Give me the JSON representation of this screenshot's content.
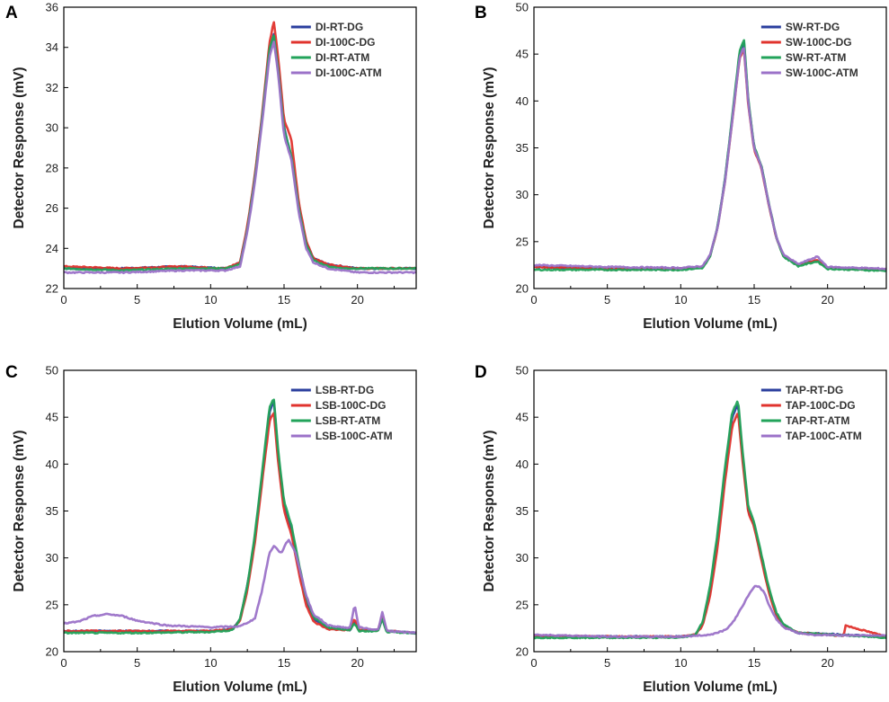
{
  "colors": {
    "RT_DG": "#2b3f9e",
    "100C_DG": "#e0332d",
    "RT_ATM": "#22a35a",
    "100C_ATM": "#9b72c8"
  },
  "chart_data": [
    {
      "panel": "A",
      "type": "line",
      "xlabel": "Elution Volume (mL)",
      "ylabel": "Detector Response (mV)",
      "xlim": [
        0,
        24
      ],
      "ylim": [
        22,
        36
      ],
      "xticks": [
        0,
        5,
        10,
        15,
        20
      ],
      "yticks": [
        22,
        24,
        26,
        28,
        30,
        32,
        34,
        36
      ],
      "legend_position": "top-right",
      "series": [
        {
          "name": "DI-RT-DG",
          "color_key": "RT_DG",
          "x": [
            0,
            4,
            8,
            11,
            12,
            12.5,
            13,
            13.5,
            14,
            14.3,
            14.6,
            15,
            15.5,
            16,
            16.5,
            17,
            18,
            19,
            20,
            24
          ],
          "y": [
            23.0,
            23.0,
            23.1,
            23.0,
            23.3,
            25.0,
            27.5,
            30.5,
            33.8,
            34.7,
            33.0,
            30.0,
            28.5,
            26.0,
            24.3,
            23.5,
            23.2,
            23.1,
            23.0,
            23.0
          ]
        },
        {
          "name": "DI-100C-DG",
          "color_key": "100C_DG",
          "x": [
            0,
            4,
            8,
            11,
            12,
            12.5,
            13,
            13.5,
            14,
            14.3,
            14.6,
            15,
            15.5,
            16,
            16.5,
            17,
            18,
            19,
            20,
            24
          ],
          "y": [
            23.1,
            23.0,
            23.1,
            23.0,
            23.3,
            25.1,
            27.6,
            30.6,
            34.2,
            35.3,
            33.5,
            30.4,
            29.4,
            26.3,
            24.4,
            23.5,
            23.2,
            23.1,
            23.0,
            23.0
          ]
        },
        {
          "name": "DI-RT-ATM",
          "color_key": "RT_ATM",
          "x": [
            0,
            4,
            8,
            11,
            12,
            12.5,
            13,
            13.5,
            14,
            14.3,
            14.6,
            15,
            15.5,
            16,
            16.5,
            17,
            18,
            19,
            20,
            24
          ],
          "y": [
            23.0,
            22.9,
            23.0,
            23.0,
            23.2,
            24.9,
            27.4,
            30.4,
            33.9,
            34.6,
            32.9,
            29.9,
            28.6,
            26.0,
            24.2,
            23.4,
            23.1,
            23.0,
            23.0,
            23.0
          ]
        },
        {
          "name": "DI-100C-ATM",
          "color_key": "100C_ATM",
          "x": [
            0,
            4,
            8,
            11,
            12,
            12.5,
            13,
            13.5,
            14,
            14.3,
            14.6,
            15,
            15.5,
            16,
            16.5,
            17,
            18,
            19,
            20,
            24
          ],
          "y": [
            22.8,
            22.8,
            22.9,
            22.9,
            23.1,
            24.8,
            27.2,
            30.2,
            33.5,
            34.3,
            32.7,
            29.6,
            28.4,
            25.8,
            24.0,
            23.3,
            23.0,
            22.9,
            22.8,
            22.8
          ]
        }
      ]
    },
    {
      "panel": "B",
      "type": "line",
      "xlabel": "Elution Volume (mL)",
      "ylabel": "Detector Response (mV)",
      "xlim": [
        0,
        24
      ],
      "ylim": [
        20,
        50
      ],
      "xticks": [
        0,
        5,
        10,
        15,
        20
      ],
      "yticks": [
        20,
        25,
        30,
        35,
        40,
        45,
        50
      ],
      "legend_position": "top-right",
      "series": [
        {
          "name": "SW-RT-DG",
          "color_key": "RT_DG",
          "x": [
            0,
            5,
            10,
            11.5,
            12,
            12.5,
            13,
            13.5,
            14,
            14.3,
            14.6,
            15,
            15.5,
            16,
            16.5,
            17,
            18,
            19.3,
            20,
            24
          ],
          "y": [
            22.3,
            22.1,
            22.1,
            22.3,
            23.5,
            26.5,
            31.5,
            38.0,
            45.0,
            46.3,
            40.0,
            35.0,
            33.0,
            29.0,
            25.5,
            23.5,
            22.5,
            23.0,
            22.2,
            22.0
          ]
        },
        {
          "name": "SW-100C-DG",
          "color_key": "100C_DG",
          "x": [
            0,
            5,
            10,
            11.5,
            12,
            12.5,
            13,
            13.5,
            14,
            14.3,
            14.6,
            15,
            15.5,
            16,
            16.5,
            17,
            18,
            19.3,
            20,
            24
          ],
          "y": [
            22.3,
            22.1,
            22.1,
            22.3,
            23.5,
            26.4,
            31.3,
            37.7,
            44.5,
            45.6,
            39.6,
            34.8,
            32.8,
            28.9,
            25.4,
            23.5,
            22.5,
            23.0,
            22.2,
            22.0
          ]
        },
        {
          "name": "SW-RT-ATM",
          "color_key": "RT_ATM",
          "x": [
            0,
            5,
            10,
            11.5,
            12,
            12.5,
            13,
            13.5,
            14,
            14.3,
            14.6,
            15,
            15.5,
            16,
            16.5,
            17,
            18,
            19.3,
            20,
            24
          ],
          "y": [
            22.0,
            22.0,
            22.0,
            22.2,
            23.4,
            26.5,
            31.5,
            38.2,
            45.3,
            46.6,
            40.2,
            35.1,
            33.1,
            29.1,
            25.5,
            23.4,
            22.4,
            22.9,
            22.1,
            21.9
          ]
        },
        {
          "name": "SW-100C-ATM",
          "color_key": "100C_ATM",
          "x": [
            0,
            5,
            10,
            11.5,
            12,
            12.5,
            13,
            13.5,
            14,
            14.3,
            14.6,
            15,
            15.5,
            16,
            16.5,
            17,
            18,
            19.3,
            20,
            24
          ],
          "y": [
            22.5,
            22.3,
            22.2,
            22.4,
            23.6,
            26.4,
            31.3,
            37.8,
            44.6,
            45.8,
            39.8,
            34.9,
            32.9,
            29.0,
            25.5,
            23.6,
            22.6,
            23.4,
            22.3,
            22.1
          ]
        }
      ]
    },
    {
      "panel": "C",
      "type": "line",
      "xlabel": "Elution Volume (mL)",
      "ylabel": "Detector Response (mV)",
      "xlim": [
        0,
        24
      ],
      "ylim": [
        20,
        50
      ],
      "xticks": [
        0,
        5,
        10,
        15,
        20
      ],
      "yticks": [
        20,
        25,
        30,
        35,
        40,
        45,
        50
      ],
      "legend_position": "top-right",
      "series": [
        {
          "name": "LSB-RT-DG",
          "color_key": "RT_DG",
          "x": [
            0,
            5,
            10,
            11.5,
            12,
            12.5,
            13,
            13.5,
            14,
            14.3,
            14.6,
            15,
            15.5,
            16,
            16.5,
            17,
            18,
            19.5,
            19.8,
            20.1,
            21.4,
            21.7,
            22,
            24
          ],
          "y": [
            22.2,
            22.2,
            22.2,
            22.4,
            23.5,
            27.0,
            32.0,
            38.5,
            45.5,
            46.8,
            41.0,
            35.5,
            33.0,
            29.0,
            25.5,
            23.5,
            22.5,
            22.3,
            23.2,
            22.3,
            22.3,
            23.5,
            22.2,
            22.0
          ]
        },
        {
          "name": "LSB-100C-DG",
          "color_key": "100C_DG",
          "x": [
            0,
            5,
            10,
            11.5,
            12,
            12.5,
            13,
            13.5,
            14,
            14.3,
            14.6,
            15,
            15.5,
            16,
            16.5,
            17,
            18,
            19.5,
            19.8,
            20.1,
            21.4,
            21.7,
            22,
            24
          ],
          "y": [
            22.2,
            22.2,
            22.2,
            22.4,
            23.3,
            26.5,
            31.5,
            38.0,
            44.5,
            45.6,
            40.2,
            35.0,
            32.5,
            28.5,
            25.0,
            23.2,
            22.4,
            22.3,
            23.5,
            22.3,
            22.3,
            23.8,
            22.2,
            22.0
          ]
        },
        {
          "name": "LSB-RT-ATM",
          "color_key": "RT_ATM",
          "x": [
            0,
            5,
            10,
            11.5,
            12,
            12.5,
            13,
            13.5,
            14,
            14.3,
            14.6,
            15,
            15.5,
            16,
            16.5,
            17,
            18,
            19.5,
            19.8,
            20.1,
            21.4,
            21.7,
            22,
            24
          ],
          "y": [
            22.0,
            22.0,
            22.1,
            22.3,
            23.5,
            27.0,
            32.3,
            39.0,
            46.0,
            47.0,
            41.5,
            36.0,
            33.5,
            29.5,
            25.8,
            23.7,
            22.6,
            22.3,
            23.0,
            22.2,
            22.2,
            23.5,
            22.1,
            22.0
          ]
        },
        {
          "name": "LSB-100C-ATM",
          "color_key": "100C_ATM",
          "x": [
            0,
            1,
            2,
            3,
            4,
            5,
            7,
            10,
            12,
            13,
            13.5,
            14,
            14.3,
            14.8,
            15.3,
            15.8,
            16.5,
            17,
            18,
            19.5,
            19.8,
            20.1,
            21.4,
            21.7,
            22,
            24
          ],
          "y": [
            23.0,
            23.2,
            23.8,
            24.0,
            23.8,
            23.3,
            22.8,
            22.6,
            22.7,
            23.5,
            26.5,
            30.5,
            31.3,
            30.5,
            32.0,
            30.5,
            26.0,
            24.0,
            22.8,
            22.5,
            25.0,
            22.6,
            22.3,
            24.2,
            22.2,
            22.0
          ]
        }
      ]
    },
    {
      "panel": "D",
      "type": "line",
      "xlabel": "Elution Volume (mL)",
      "ylabel": "Detector Response (mV)",
      "xlim": [
        0,
        24
      ],
      "ylim": [
        20,
        50
      ],
      "xticks": [
        0,
        5,
        10,
        15,
        20
      ],
      "yticks": [
        20,
        25,
        30,
        35,
        40,
        45,
        50
      ],
      "legend_position": "top-right",
      "series": [
        {
          "name": "TAP-RT-DG",
          "color_key": "RT_DG",
          "x": [
            0,
            5,
            10,
            11,
            11.5,
            12,
            12.5,
            13,
            13.5,
            13.9,
            14.2,
            14.6,
            15,
            15.5,
            16,
            16.5,
            17,
            18,
            24
          ],
          "y": [
            21.7,
            21.6,
            21.6,
            21.8,
            23.0,
            26.5,
            32.0,
            39.0,
            45.0,
            46.5,
            41.0,
            35.0,
            33.5,
            30.0,
            26.5,
            24.0,
            22.8,
            22.0,
            21.6
          ]
        },
        {
          "name": "TAP-100C-DG",
          "color_key": "100C_DG",
          "x": [
            0,
            5,
            10,
            11,
            11.5,
            12,
            12.5,
            13,
            13.5,
            13.9,
            14.2,
            14.6,
            15,
            15.5,
            16,
            16.5,
            17,
            18,
            21.1,
            21.2,
            24
          ],
          "y": [
            21.7,
            21.6,
            21.6,
            21.8,
            22.8,
            26.0,
            31.0,
            38.0,
            44.0,
            45.5,
            40.5,
            34.8,
            33.3,
            29.8,
            26.3,
            23.9,
            22.7,
            22.0,
            21.7,
            22.8,
            21.6
          ]
        },
        {
          "name": "TAP-RT-ATM",
          "color_key": "RT_ATM",
          "x": [
            0,
            5,
            10,
            11,
            11.5,
            12,
            12.5,
            13,
            13.5,
            13.9,
            14.2,
            14.6,
            15,
            15.5,
            16,
            16.5,
            17,
            18,
            24
          ],
          "y": [
            21.5,
            21.5,
            21.5,
            21.8,
            23.2,
            27.0,
            32.5,
            39.5,
            45.5,
            46.8,
            41.5,
            35.5,
            33.8,
            30.3,
            26.8,
            24.2,
            22.9,
            22.0,
            21.5
          ]
        },
        {
          "name": "TAP-100C-ATM",
          "color_key": "100C_ATM",
          "x": [
            0,
            5,
            10,
            12,
            13,
            13.5,
            14,
            14.5,
            15,
            15.3,
            15.7,
            16,
            16.5,
            17,
            18,
            19,
            24
          ],
          "y": [
            21.8,
            21.6,
            21.6,
            21.8,
            22.3,
            23.0,
            24.3,
            25.7,
            26.9,
            27.0,
            26.3,
            25.0,
            23.5,
            22.6,
            22.0,
            21.8,
            21.7
          ]
        }
      ]
    }
  ]
}
